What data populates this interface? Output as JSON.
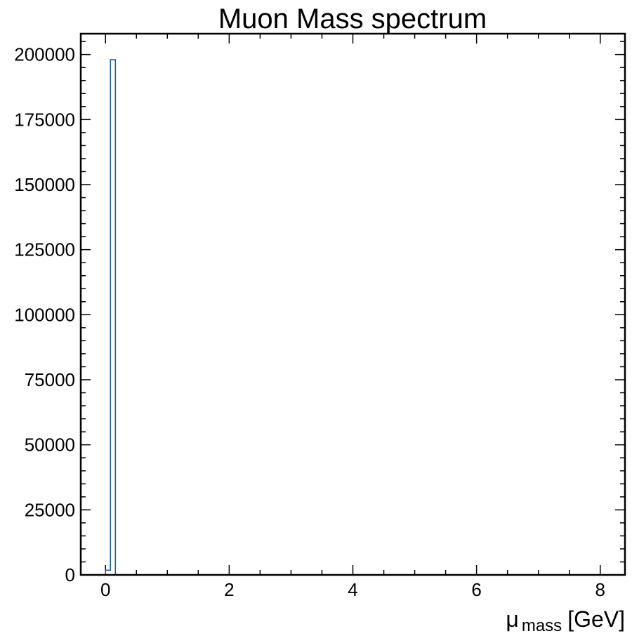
{
  "chart_data": {
    "type": "histogram",
    "title": "Muon Mass spectrum",
    "xlabel": {
      "symbol": "μ",
      "subscript": "mass",
      "unit": "[GeV]"
    },
    "ylabel": "",
    "xlim": [
      -0.4,
      8.4
    ],
    "ylim": [
      0,
      208000
    ],
    "xticks": [
      0,
      2,
      4,
      6,
      8
    ],
    "xtick_labels": [
      "0",
      "2",
      "4",
      "6",
      "8"
    ],
    "xminor_step": 0.5,
    "yticks": [
      0,
      25000,
      50000,
      75000,
      100000,
      125000,
      150000,
      175000,
      200000
    ],
    "ytick_labels": [
      "0",
      "25000",
      "50000",
      "75000",
      "100000",
      "125000",
      "150000",
      "175000",
      "200000"
    ],
    "yminor_step": 5000,
    "grid": false,
    "series": [
      {
        "style": "step",
        "color": "#1f5f9e",
        "bins": [
          {
            "x0": 0.0,
            "x1": 0.08,
            "count": 1800
          },
          {
            "x0": 0.08,
            "x1": 0.16,
            "count": 198000
          }
        ]
      }
    ]
  }
}
